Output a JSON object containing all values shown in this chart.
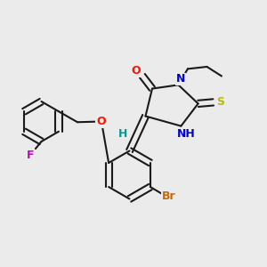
{
  "bg": "#ebebeb",
  "bc": "#1a1a1a",
  "bw": 1.5,
  "dbo": 0.012,
  "figsize": [
    3.0,
    3.0
  ],
  "dpi": 100,
  "col": {
    "F": "#cc00cc",
    "O": "#ff1100",
    "N": "#0000dd",
    "S": "#bbbb00",
    "Br": "#cc6600",
    "H": "#009999",
    "C": "#1a1a1a",
    "bg": "#ebebeb"
  }
}
